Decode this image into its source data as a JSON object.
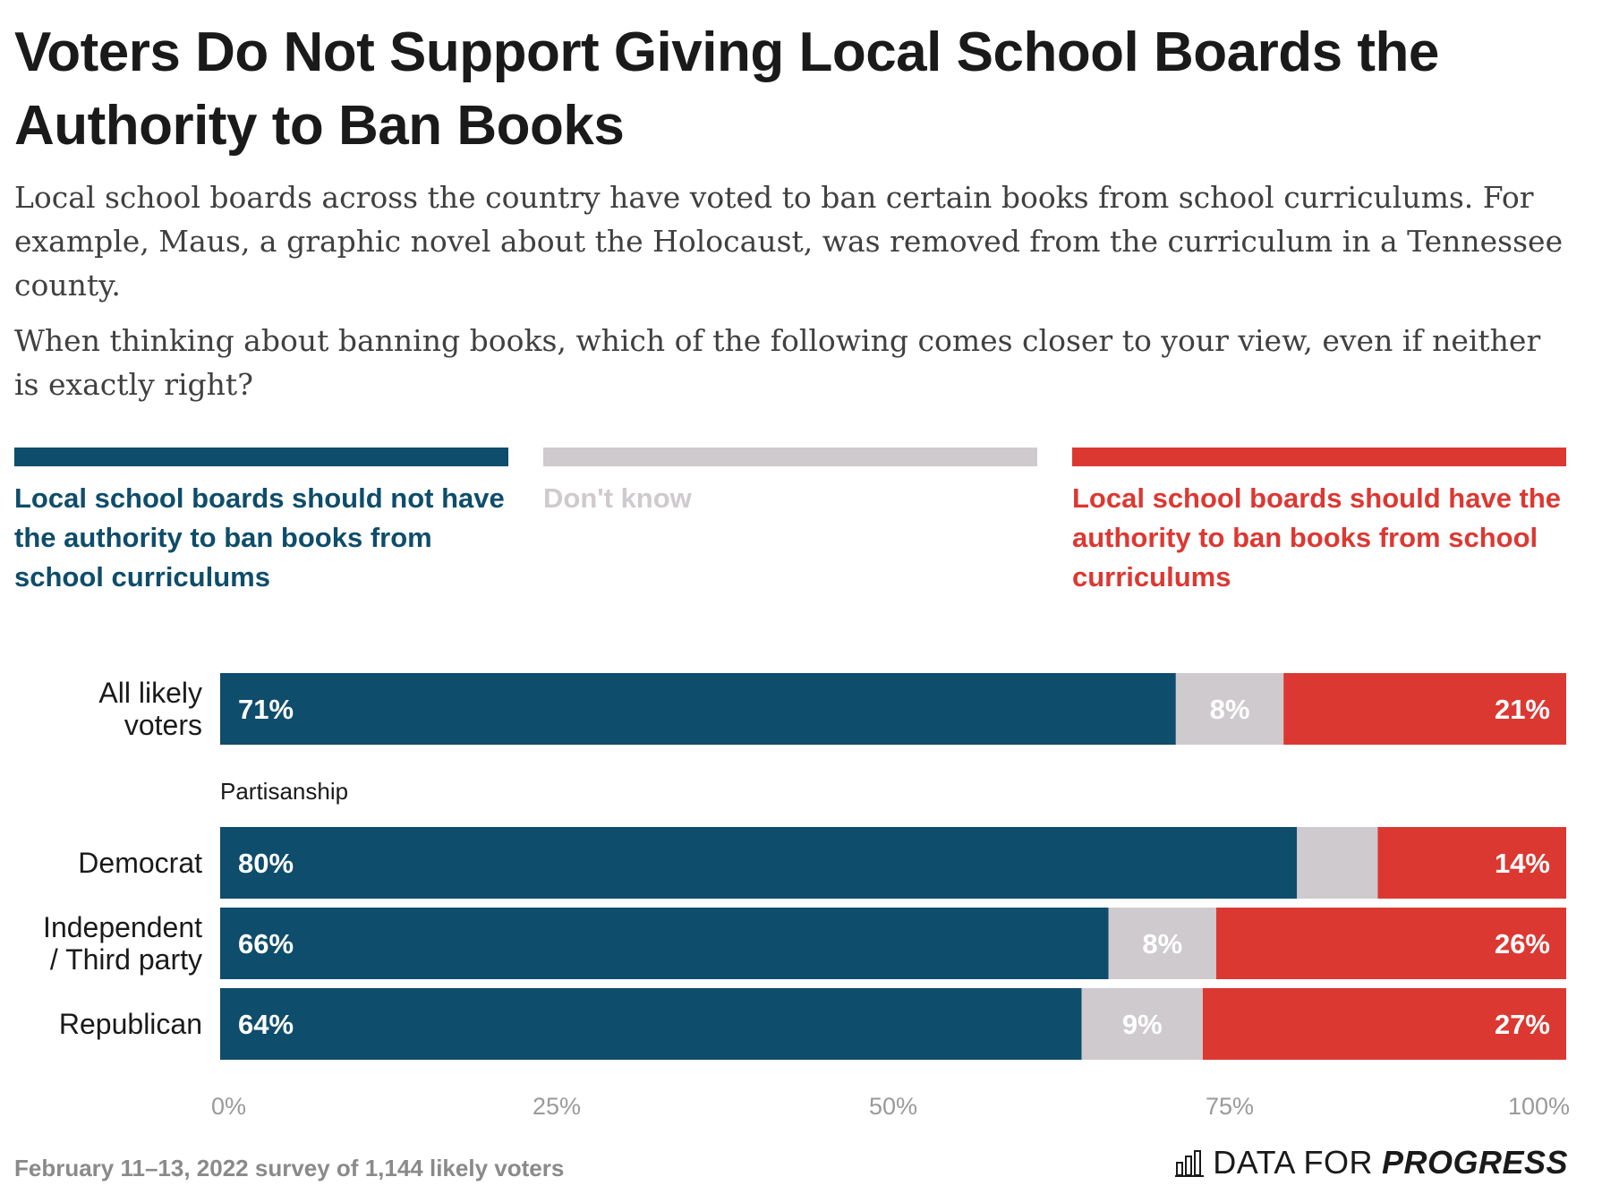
{
  "title": "Voters Do Not Support Giving Local School Boards the Authority to Ban Books",
  "description": "Local school boards across the country have voted to ban certain books from school curriculums. For example, Maus, a graphic novel about the Holocaust, was removed from the curriculum in a Tennessee county.",
  "question": "When thinking about banning books, which of the following comes closer to your view, even if neither is exactly right?",
  "legend": [
    {
      "label": "Local school boards should not have the authority to ban books from school curriculums",
      "color": "#0e4d6b"
    },
    {
      "label": "Don't know",
      "color": "#cfcacd"
    },
    {
      "label": "Local school boards should have the authority to ban books from school curriculums",
      "color": "#dc3832"
    }
  ],
  "source": "February 11–13, 2022 survey of 1,144 likely voters",
  "logo": {
    "word_a": "DATA FOR",
    "word_b": "PROGRESS",
    "icon": "bar-chart-icon"
  },
  "chart_data": {
    "type": "bar",
    "orientation": "horizontal",
    "stacked": true,
    "categories": [
      "All likely voters",
      "Democrat",
      "Independent / Third party",
      "Republican"
    ],
    "group_label": {
      "text": "Partisanship",
      "before_category": 1
    },
    "series": [
      {
        "name": "Local school boards should not have the authority to ban books from school curriculums",
        "color": "#0e4d6b",
        "values": [
          71,
          80,
          66,
          64
        ],
        "labels": [
          "71%",
          "80%",
          "66%",
          "64%"
        ]
      },
      {
        "name": "Don't know",
        "color": "#cfcacd",
        "values": [
          8,
          6,
          8,
          9
        ],
        "labels": [
          "8%",
          "",
          "8%",
          "9%"
        ]
      },
      {
        "name": "Local school boards should have the authority to ban books from school curriculums",
        "color": "#dc3832",
        "values": [
          21,
          14,
          26,
          27
        ],
        "labels": [
          "21%",
          "14%",
          "26%",
          "27%"
        ]
      }
    ],
    "xlim": [
      0,
      100
    ],
    "x_ticks": [
      "0%",
      "25%",
      "50%",
      "75%",
      "100%"
    ]
  }
}
